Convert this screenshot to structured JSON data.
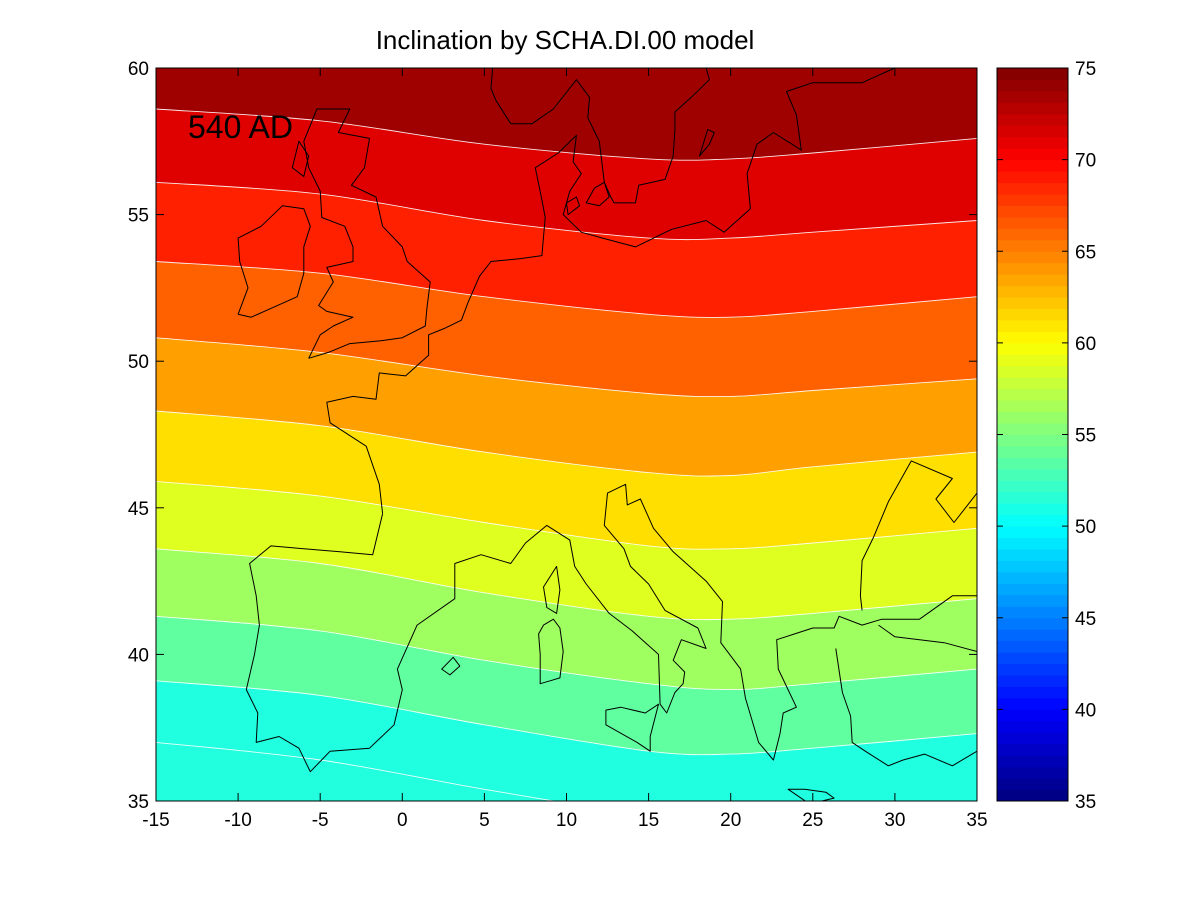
{
  "title": "Inclination by SCHA.DI.00 model",
  "annotation": "540 AD",
  "chart_data": {
    "type": "heatmap",
    "title": "Inclination by SCHA.DI.00 model",
    "xlim": [
      -15,
      35
    ],
    "ylim": [
      35,
      60
    ],
    "x_ticks": [
      "-15",
      "-10",
      "-5",
      "0",
      "5",
      "10",
      "15",
      "20",
      "25",
      "30",
      "35"
    ],
    "y_ticks": [
      "35",
      "40",
      "45",
      "50",
      "55",
      "60"
    ],
    "colorbar": {
      "colormap": "jet",
      "range": [
        35,
        75
      ],
      "ticks": [
        "35",
        "40",
        "45",
        "50",
        "55",
        "60",
        "65",
        "70",
        "75"
      ]
    },
    "contour_levels": [
      52.5,
      55,
      57.5,
      60,
      62.5,
      65,
      67.5,
      70,
      72.5
    ],
    "contour_lines": [
      {
        "level": 72.5,
        "points": [
          [
            -15,
            58.6
          ],
          [
            -5,
            58.2
          ],
          [
            5,
            57.4
          ],
          [
            15,
            56.9
          ],
          [
            20,
            56.9
          ],
          [
            25,
            57.1
          ],
          [
            35,
            57.6
          ]
        ]
      },
      {
        "level": 70,
        "points": [
          [
            -15,
            56.1
          ],
          [
            -5,
            55.7
          ],
          [
            5,
            54.8
          ],
          [
            15,
            54.2
          ],
          [
            20,
            54.2
          ],
          [
            25,
            54.4
          ],
          [
            35,
            54.8
          ]
        ]
      },
      {
        "level": 67.5,
        "points": [
          [
            -15,
            53.4
          ],
          [
            -5,
            53.0
          ],
          [
            5,
            52.2
          ],
          [
            15,
            51.6
          ],
          [
            20,
            51.5
          ],
          [
            25,
            51.7
          ],
          [
            35,
            52.2
          ]
        ]
      },
      {
        "level": 65,
        "points": [
          [
            -15,
            50.8
          ],
          [
            -5,
            50.3
          ],
          [
            5,
            49.5
          ],
          [
            15,
            48.9
          ],
          [
            20,
            48.8
          ],
          [
            25,
            49.0
          ],
          [
            35,
            49.4
          ]
        ]
      },
      {
        "level": 62.5,
        "points": [
          [
            -15,
            48.3
          ],
          [
            -5,
            47.8
          ],
          [
            5,
            46.9
          ],
          [
            15,
            46.2
          ],
          [
            20,
            46.1
          ],
          [
            25,
            46.4
          ],
          [
            35,
            46.9
          ]
        ]
      },
      {
        "level": 60,
        "points": [
          [
            -15,
            45.9
          ],
          [
            -5,
            45.4
          ],
          [
            5,
            44.5
          ],
          [
            15,
            43.7
          ],
          [
            20,
            43.6
          ],
          [
            25,
            43.8
          ],
          [
            35,
            44.3
          ]
        ]
      },
      {
        "level": 57.5,
        "points": [
          [
            -15,
            43.6
          ],
          [
            -5,
            43.1
          ],
          [
            5,
            42.1
          ],
          [
            15,
            41.3
          ],
          [
            20,
            41.2
          ],
          [
            25,
            41.4
          ],
          [
            35,
            41.9
          ]
        ]
      },
      {
        "level": 55,
        "points": [
          [
            -15,
            41.3
          ],
          [
            -5,
            40.8
          ],
          [
            5,
            39.8
          ],
          [
            15,
            39.0
          ],
          [
            20,
            38.8
          ],
          [
            25,
            39.0
          ],
          [
            35,
            39.5
          ]
        ]
      },
      {
        "level": 52.5,
        "points": [
          [
            -15,
            39.1
          ],
          [
            -5,
            38.6
          ],
          [
            5,
            37.6
          ],
          [
            15,
            36.7
          ],
          [
            20,
            36.6
          ],
          [
            25,
            36.8
          ],
          [
            35,
            37.3
          ]
        ]
      },
      {
        "level": 50,
        "points": [
          [
            -15,
            37.0
          ],
          [
            -5,
            36.4
          ],
          [
            5,
            35.4
          ],
          [
            15,
            34.5
          ],
          [
            20,
            34.3
          ],
          [
            25,
            34.5
          ],
          [
            35,
            35.0
          ]
        ]
      }
    ],
    "region_below_lowest_value": 51.3
  },
  "coastlines": [
    [
      [
        -10.0,
        51.6
      ],
      [
        -9.4,
        52.5
      ],
      [
        -9.9,
        53.4
      ],
      [
        -10.0,
        54.2
      ],
      [
        -8.6,
        54.6
      ],
      [
        -7.3,
        55.3
      ],
      [
        -6.0,
        55.2
      ],
      [
        -5.6,
        54.6
      ],
      [
        -6.0,
        53.9
      ],
      [
        -6.0,
        53.0
      ],
      [
        -6.4,
        52.2
      ],
      [
        -8.0,
        51.8
      ],
      [
        -9.2,
        51.5
      ],
      [
        -10.0,
        51.6
      ]
    ],
    [
      [
        -5.7,
        50.1
      ],
      [
        -5.0,
        50.9
      ],
      [
        -4.2,
        51.2
      ],
      [
        -3.0,
        51.5
      ],
      [
        -4.6,
        51.7
      ],
      [
        -5.1,
        51.9
      ],
      [
        -4.2,
        52.7
      ],
      [
        -4.6,
        53.2
      ],
      [
        -3.0,
        53.4
      ],
      [
        -3.0,
        53.9
      ],
      [
        -3.5,
        54.6
      ],
      [
        -4.9,
        54.9
      ],
      [
        -5.0,
        55.8
      ],
      [
        -5.7,
        56.6
      ],
      [
        -6.0,
        57.5
      ],
      [
        -5.2,
        58.6
      ],
      [
        -3.2,
        58.6
      ],
      [
        -3.9,
        57.8
      ],
      [
        -2.0,
        57.6
      ],
      [
        -2.3,
        56.6
      ],
      [
        -3.1,
        56.0
      ],
      [
        -1.6,
        55.6
      ],
      [
        -1.2,
        54.6
      ],
      [
        0.0,
        53.9
      ],
      [
        0.3,
        53.4
      ],
      [
        1.7,
        52.7
      ],
      [
        1.5,
        51.8
      ],
      [
        1.4,
        51.2
      ],
      [
        0.0,
        50.8
      ],
      [
        -1.3,
        50.7
      ],
      [
        -3.2,
        50.6
      ],
      [
        -4.5,
        50.3
      ],
      [
        -5.7,
        50.1
      ]
    ],
    [
      [
        -1.2,
        44.8
      ],
      [
        -1.4,
        45.8
      ],
      [
        -2.2,
        47.1
      ],
      [
        -4.4,
        47.9
      ],
      [
        -4.6,
        48.6
      ],
      [
        -3.0,
        48.8
      ],
      [
        -1.6,
        48.7
      ],
      [
        -1.4,
        49.6
      ],
      [
        0.2,
        49.5
      ],
      [
        1.6,
        50.2
      ],
      [
        1.6,
        50.9
      ],
      [
        2.5,
        51.1
      ],
      [
        3.6,
        51.4
      ],
      [
        4.0,
        52.0
      ],
      [
        4.7,
        52.9
      ],
      [
        5.4,
        53.4
      ],
      [
        7.2,
        53.5
      ],
      [
        8.5,
        53.6
      ],
      [
        8.7,
        54.9
      ],
      [
        8.5,
        55.5
      ],
      [
        8.1,
        56.6
      ],
      [
        9.5,
        57.1
      ],
      [
        10.6,
        57.7
      ],
      [
        10.4,
        56.8
      ],
      [
        10.9,
        56.4
      ],
      [
        10.2,
        55.8
      ],
      [
        9.8,
        55.0
      ],
      [
        10.9,
        54.4
      ],
      [
        12.2,
        54.2
      ],
      [
        14.2,
        53.9
      ],
      [
        16.4,
        54.5
      ],
      [
        18.5,
        54.8
      ],
      [
        19.6,
        54.4
      ],
      [
        21.2,
        55.2
      ],
      [
        21.0,
        56.4
      ],
      [
        21.6,
        57.4
      ],
      [
        22.6,
        57.8
      ],
      [
        24.3,
        57.2
      ],
      [
        24.0,
        58.4
      ],
      [
        23.4,
        59.2
      ],
      [
        25.0,
        59.5
      ],
      [
        28.0,
        59.5
      ],
      [
        30.0,
        60.0
      ]
    ],
    [
      [
        -1.2,
        44.8
      ],
      [
        -1.8,
        43.4
      ],
      [
        -3.8,
        43.5
      ],
      [
        -6.0,
        43.6
      ],
      [
        -8.0,
        43.7
      ],
      [
        -9.3,
        43.1
      ],
      [
        -8.9,
        42.0
      ],
      [
        -8.7,
        41.0
      ],
      [
        -9.0,
        40.0
      ],
      [
        -9.5,
        38.8
      ],
      [
        -8.8,
        38.0
      ],
      [
        -8.9,
        37.0
      ],
      [
        -7.5,
        37.2
      ],
      [
        -6.3,
        36.8
      ],
      [
        -5.6,
        36.0
      ],
      [
        -4.4,
        36.7
      ],
      [
        -2.0,
        36.8
      ],
      [
        -0.5,
        37.6
      ],
      [
        0.0,
        38.8
      ],
      [
        -0.3,
        39.5
      ],
      [
        0.9,
        41.0
      ],
      [
        3.2,
        41.9
      ],
      [
        3.2,
        43.1
      ],
      [
        4.8,
        43.4
      ],
      [
        6.6,
        43.1
      ],
      [
        7.5,
        43.8
      ],
      [
        8.8,
        44.4
      ],
      [
        10.2,
        43.9
      ],
      [
        10.5,
        43.0
      ],
      [
        11.2,
        42.4
      ],
      [
        12.6,
        41.4
      ],
      [
        14.0,
        40.8
      ],
      [
        15.6,
        40.0
      ],
      [
        15.7,
        38.3
      ],
      [
        16.1,
        38.0
      ],
      [
        16.6,
        38.7
      ],
      [
        17.1,
        39.0
      ],
      [
        17.2,
        39.4
      ],
      [
        16.5,
        39.8
      ],
      [
        17.0,
        40.5
      ],
      [
        18.5,
        40.2
      ],
      [
        18.0,
        40.9
      ],
      [
        16.0,
        41.5
      ],
      [
        15.0,
        42.4
      ],
      [
        13.9,
        43.0
      ],
      [
        13.5,
        43.6
      ],
      [
        12.3,
        44.4
      ],
      [
        12.5,
        45.5
      ],
      [
        13.6,
        45.8
      ],
      [
        13.7,
        45.1
      ],
      [
        14.5,
        45.3
      ],
      [
        15.3,
        44.3
      ],
      [
        16.5,
        43.5
      ],
      [
        18.5,
        42.5
      ],
      [
        19.5,
        41.8
      ],
      [
        19.4,
        40.4
      ],
      [
        20.6,
        39.5
      ],
      [
        20.9,
        38.5
      ],
      [
        21.7,
        37.0
      ],
      [
        22.6,
        36.4
      ],
      [
        23.0,
        37.3
      ],
      [
        23.2,
        38.0
      ],
      [
        24.0,
        38.2
      ],
      [
        22.9,
        39.5
      ],
      [
        22.8,
        40.5
      ],
      [
        23.9,
        40.7
      ],
      [
        25.0,
        40.9
      ],
      [
        26.3,
        40.9
      ],
      [
        26.6,
        41.3
      ],
      [
        28.0,
        41.0
      ],
      [
        29.2,
        41.2
      ],
      [
        31.5,
        41.2
      ],
      [
        33.5,
        42.0
      ],
      [
        35.0,
        42.0
      ]
    ],
    [
      [
        26.4,
        40.2
      ],
      [
        26.8,
        38.7
      ],
      [
        27.3,
        37.9
      ],
      [
        27.4,
        37.0
      ],
      [
        28.2,
        36.7
      ],
      [
        29.6,
        36.2
      ],
      [
        30.5,
        36.4
      ],
      [
        31.8,
        36.6
      ],
      [
        33.5,
        36.2
      ],
      [
        35.0,
        36.7
      ]
    ],
    [
      [
        29.0,
        41.0
      ],
      [
        30.0,
        40.6
      ],
      [
        33.0,
        40.4
      ],
      [
        35.0,
        40.1
      ]
    ],
    [
      [
        35.0,
        45.5
      ],
      [
        33.6,
        44.5
      ],
      [
        32.5,
        45.3
      ],
      [
        33.5,
        46.0
      ],
      [
        31.0,
        46.6
      ],
      [
        30.2,
        45.8
      ],
      [
        29.6,
        45.2
      ],
      [
        28.7,
        44.0
      ],
      [
        28.0,
        43.2
      ],
      [
        27.9,
        42.0
      ],
      [
        28.0,
        41.5
      ]
    ],
    [
      [
        12.3,
        56.1
      ],
      [
        12.7,
        55.6
      ],
      [
        12.9,
        55.4
      ],
      [
        14.2,
        55.4
      ],
      [
        14.4,
        56.0
      ],
      [
        16.0,
        56.2
      ],
      [
        16.5,
        57.0
      ],
      [
        16.6,
        57.9
      ],
      [
        16.6,
        58.5
      ],
      [
        17.6,
        59.0
      ],
      [
        18.7,
        59.6
      ],
      [
        18.5,
        60.0
      ]
    ],
    [
      [
        5.5,
        60.0
      ],
      [
        5.4,
        59.3
      ],
      [
        5.7,
        58.9
      ],
      [
        6.6,
        58.1
      ],
      [
        7.9,
        58.1
      ],
      [
        9.2,
        58.6
      ],
      [
        10.6,
        59.6
      ],
      [
        11.4,
        59.0
      ],
      [
        11.3,
        58.3
      ],
      [
        12.0,
        57.5
      ],
      [
        12.3,
        56.1
      ]
    ]
  ],
  "islands": [
    [
      [
        8.6,
        41.0
      ],
      [
        9.2,
        41.2
      ],
      [
        9.6,
        40.9
      ],
      [
        9.8,
        40.1
      ],
      [
        9.6,
        39.2
      ],
      [
        9.0,
        39.1
      ],
      [
        8.4,
        39.0
      ],
      [
        8.4,
        40.0
      ],
      [
        8.3,
        40.7
      ],
      [
        8.6,
        41.0
      ]
    ],
    [
      [
        9.4,
        43.0
      ],
      [
        9.6,
        42.2
      ],
      [
        9.4,
        41.4
      ],
      [
        8.8,
        41.6
      ],
      [
        8.6,
        42.3
      ],
      [
        9.4,
        43.0
      ]
    ],
    [
      [
        12.4,
        38.1
      ],
      [
        13.3,
        38.2
      ],
      [
        14.8,
        38.0
      ],
      [
        15.6,
        38.3
      ],
      [
        15.1,
        37.2
      ],
      [
        15.1,
        36.7
      ],
      [
        14.3,
        37.0
      ],
      [
        12.4,
        37.6
      ],
      [
        12.4,
        38.1
      ]
    ],
    [
      [
        2.4,
        39.5
      ],
      [
        3.1,
        39.9
      ],
      [
        3.5,
        39.6
      ],
      [
        2.9,
        39.3
      ],
      [
        2.4,
        39.5
      ]
    ],
    [
      [
        23.5,
        35.4
      ],
      [
        24.5,
        35.4
      ],
      [
        25.8,
        35.3
      ],
      [
        26.3,
        35.1
      ],
      [
        24.8,
        34.9
      ],
      [
        23.5,
        35.4
      ]
    ],
    [
      [
        10.1,
        55.0
      ],
      [
        10.8,
        55.3
      ],
      [
        10.6,
        55.6
      ],
      [
        10.0,
        55.4
      ],
      [
        10.1,
        55.0
      ]
    ],
    [
      [
        11.2,
        55.4
      ],
      [
        12.0,
        55.3
      ],
      [
        12.6,
        55.6
      ],
      [
        12.3,
        56.1
      ],
      [
        11.7,
        55.9
      ],
      [
        11.2,
        55.4
      ]
    ],
    [
      [
        18.1,
        57.0
      ],
      [
        18.7,
        57.4
      ],
      [
        19.0,
        57.8
      ],
      [
        18.6,
        57.9
      ],
      [
        18.1,
        57.0
      ]
    ],
    [
      [
        -6.3,
        57.5
      ],
      [
        -6.7,
        56.6
      ],
      [
        -6.0,
        56.3
      ],
      [
        -5.7,
        57.0
      ],
      [
        -6.3,
        57.5
      ]
    ]
  ]
}
